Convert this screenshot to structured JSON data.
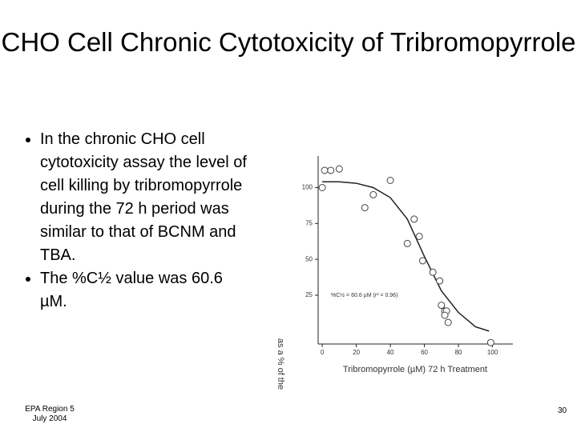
{
  "title": "CHO Cell Chronic Cytotoxicity of Tribromopyrrole",
  "bullets": [
    "In the chronic CHO cell cytotoxicity assay the level of cell killing by tribromopyrrole during the 72 h period was similar to that of BCNM and TBA.",
    "The %C½ value was 60.6 µM."
  ],
  "footer": {
    "left": [
      "EPA Region 5",
      "July 2004"
    ],
    "page": "30"
  },
  "chart_data": {
    "type": "scatter",
    "xlabel": "Tribromopyrrole (µM) 72 h Treatment",
    "ylabel": "as a % of the",
    "annotation": "%C½ = 60.6 µM (r² = 0.96)",
    "xlim": [
      -2.4,
      112
    ],
    "xticks": [
      0,
      20,
      40,
      60,
      80,
      100
    ],
    "ylim": [
      -9,
      122
    ],
    "yticks": [
      25,
      50,
      75,
      100
    ],
    "points": {
      "x": [
        0,
        1.4,
        5,
        10,
        25,
        30,
        40,
        54,
        50,
        57,
        59,
        65,
        69,
        70,
        72,
        73,
        72,
        74,
        99
      ],
      "values": [
        100,
        112,
        112,
        113,
        86,
        95,
        105,
        78,
        61,
        66,
        49,
        41,
        35,
        18,
        14,
        14,
        11,
        6,
        -8
      ]
    },
    "fit": {
      "x": [
        0,
        10,
        20,
        30,
        40,
        50,
        60,
        70,
        80,
        90,
        98
      ],
      "values": [
        104,
        104,
        103,
        100,
        93,
        78,
        52,
        28,
        13,
        3,
        0
      ]
    }
  }
}
